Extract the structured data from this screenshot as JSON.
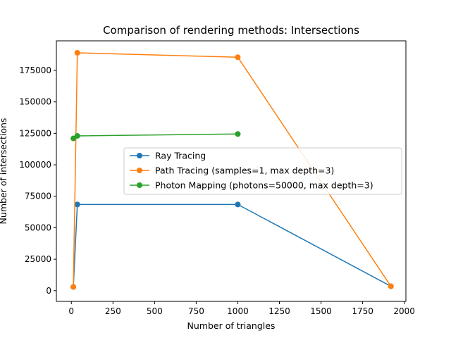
{
  "chart_data": {
    "type": "line",
    "title": "Comparison of rendering methods: Intersections",
    "xlabel": "Number of triangles",
    "ylabel": "Number of intersections",
    "xlim": [
      -90,
      2010
    ],
    "ylim": [
      -8500,
      198500
    ],
    "xticks": [
      0,
      250,
      500,
      750,
      1000,
      1250,
      1500,
      1750,
      2000
    ],
    "xtick_labels": [
      "0",
      "250",
      "500",
      "750",
      "1000",
      "1250",
      "1500",
      "1750",
      "2000"
    ],
    "yticks": [
      0,
      25000,
      50000,
      75000,
      100000,
      125000,
      150000,
      175000
    ],
    "ytick_labels": [
      "0",
      "25000",
      "50000",
      "75000",
      "100000",
      "125000",
      "150000",
      "175000"
    ],
    "grid": false,
    "legend_position": "center-right",
    "series": [
      {
        "name": "Ray Tracing",
        "color": "#1f77b4",
        "x": [
          12,
          36,
          1000,
          1920
        ],
        "y": [
          3000,
          68500,
          68500,
          3500
        ]
      },
      {
        "name": "Path Tracing (samples=1, max depth=3)",
        "color": "#ff7f0e",
        "x": [
          12,
          36,
          1000,
          1920
        ],
        "y": [
          3000,
          189000,
          185500,
          3500
        ]
      },
      {
        "name": "Photon Mapping (photons=50000, max depth=3)",
        "color": "#2ca02c",
        "x": [
          12,
          36,
          1000
        ],
        "y": [
          121000,
          123000,
          124500
        ]
      }
    ]
  }
}
